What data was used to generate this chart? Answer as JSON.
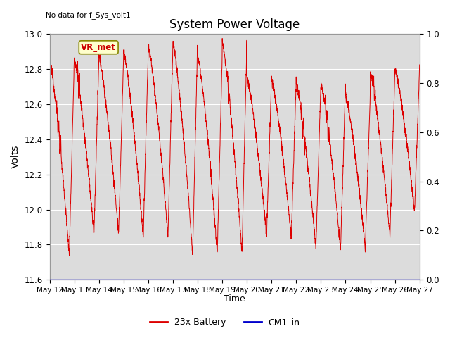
{
  "title": "System Power Voltage",
  "no_data_label": "No data for f_Sys_volt1",
  "xlabel": "Time",
  "ylabel": "Volts",
  "ylim_left": [
    11.6,
    13.0
  ],
  "ylim_right": [
    0.0,
    1.0
  ],
  "background_color": "#ffffff",
  "plot_bg_color": "#dcdcdc",
  "grid_color": "#ffffff",
  "annotation_label": "VR_met",
  "annotation_bg": "#ffffcc",
  "annotation_border": "#888800",
  "annotation_text_color": "#cc0000",
  "x_tick_labels": [
    "May 12",
    "May 13",
    "May 14",
    "May 15",
    "May 16",
    "May 17",
    "May 18",
    "May 19",
    "May 20",
    "May 21",
    "May 22",
    "May 23",
    "May 24",
    "May 25",
    "May 26",
    "May 27"
  ],
  "battery_color": "#dd0000",
  "cm1_color": "#0000cc",
  "legend_entries": [
    "23x Battery",
    "CM1_in"
  ],
  "yticks_left": [
    11.6,
    11.8,
    12.0,
    12.2,
    12.4,
    12.6,
    12.8,
    13.0
  ],
  "yticks_right": [
    0.0,
    0.2,
    0.4,
    0.6,
    0.8,
    1.0
  ]
}
